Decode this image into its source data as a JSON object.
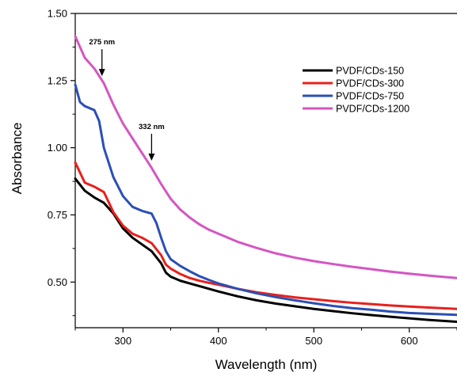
{
  "chart_data": {
    "type": "line",
    "xlabel": "Wavelength (nm)",
    "ylabel": "Absorbance",
    "xlim": [
      250,
      650
    ],
    "ylim": [
      0.33,
      1.5
    ],
    "xticks": [
      300,
      400,
      500,
      600
    ],
    "yticks": [
      0.5,
      0.75,
      1.0,
      1.25,
      1.5
    ],
    "xtick_labels": [
      "300",
      "400",
      "500",
      "600"
    ],
    "ytick_labels": [
      "0.50",
      "0.75",
      "1.00",
      "1.25",
      "1.50"
    ],
    "grid": false,
    "legend_position": "top-right",
    "annotations": [
      {
        "text": "275 nm",
        "x": 278,
        "y": 1.255
      },
      {
        "text": "332 nm",
        "x": 330,
        "y": 0.94
      }
    ],
    "series": [
      {
        "name": "PVDF/CDs-150",
        "color": "#000000",
        "x": [
          250,
          260,
          270,
          280,
          290,
          300,
          310,
          320,
          330,
          340,
          345,
          350,
          360,
          370,
          380,
          390,
          400,
          420,
          440,
          460,
          480,
          500,
          520,
          540,
          560,
          580,
          600,
          620,
          650
        ],
        "y": [
          0.885,
          0.84,
          0.815,
          0.795,
          0.755,
          0.7,
          0.665,
          0.64,
          0.615,
          0.57,
          0.535,
          0.52,
          0.505,
          0.495,
          0.485,
          0.475,
          0.465,
          0.447,
          0.432,
          0.42,
          0.41,
          0.4,
          0.392,
          0.384,
          0.377,
          0.371,
          0.365,
          0.359,
          0.352
        ]
      },
      {
        "name": "PVDF/CDs-300",
        "color": "#e8201c",
        "x": [
          250,
          260,
          270,
          280,
          290,
          300,
          310,
          320,
          330,
          340,
          345,
          350,
          360,
          370,
          380,
          390,
          400,
          420,
          440,
          460,
          480,
          500,
          520,
          540,
          560,
          580,
          600,
          620,
          650
        ],
        "y": [
          0.945,
          0.87,
          0.855,
          0.835,
          0.76,
          0.71,
          0.68,
          0.665,
          0.645,
          0.6,
          0.565,
          0.55,
          0.53,
          0.515,
          0.505,
          0.497,
          0.49,
          0.475,
          0.462,
          0.452,
          0.443,
          0.436,
          0.429,
          0.423,
          0.418,
          0.413,
          0.409,
          0.405,
          0.4
        ]
      },
      {
        "name": "PVDF/CDs-750",
        "color": "#2b4fb5",
        "x": [
          250,
          255,
          260,
          270,
          275,
          280,
          290,
          300,
          310,
          320,
          330,
          335,
          340,
          345,
          350,
          360,
          370,
          380,
          390,
          400,
          420,
          440,
          460,
          480,
          500,
          520,
          540,
          560,
          580,
          600,
          620,
          650
        ],
        "y": [
          1.235,
          1.17,
          1.155,
          1.14,
          1.1,
          1.0,
          0.89,
          0.82,
          0.78,
          0.765,
          0.755,
          0.72,
          0.665,
          0.615,
          0.585,
          0.56,
          0.54,
          0.522,
          0.508,
          0.495,
          0.475,
          0.458,
          0.444,
          0.432,
          0.421,
          0.411,
          0.403,
          0.397,
          0.39,
          0.385,
          0.382,
          0.378
        ]
      },
      {
        "name": "PVDF/CDs-1200",
        "color": "#d456c2",
        "x": [
          250,
          260,
          270,
          280,
          290,
          300,
          310,
          320,
          330,
          340,
          350,
          360,
          370,
          380,
          390,
          400,
          420,
          440,
          460,
          480,
          500,
          520,
          540,
          560,
          580,
          600,
          620,
          650
        ],
        "y": [
          1.415,
          1.335,
          1.295,
          1.24,
          1.16,
          1.09,
          1.035,
          0.98,
          0.925,
          0.865,
          0.81,
          0.77,
          0.74,
          0.715,
          0.695,
          0.68,
          0.65,
          0.627,
          0.607,
          0.591,
          0.578,
          0.567,
          0.557,
          0.548,
          0.539,
          0.531,
          0.524,
          0.515
        ]
      }
    ]
  }
}
